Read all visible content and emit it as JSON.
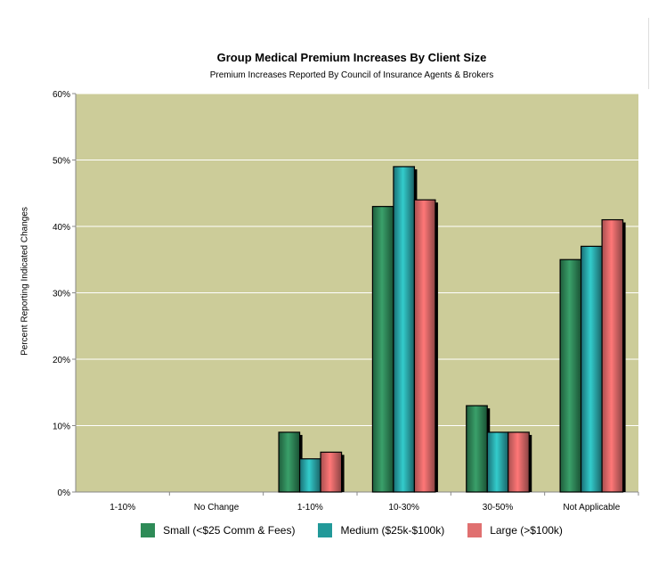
{
  "chart_data": {
    "type": "bar",
    "title": "Group Medical Premium Increases By Client Size",
    "subtitle": "Premium Increases Reported By Council of Insurance Agents & Brokers",
    "xlabel": "",
    "ylabel": "Percent Reporting Indicated Changes",
    "ylim": [
      0,
      60
    ],
    "yticks": [
      "0%",
      "10%",
      "20%",
      "30%",
      "40%",
      "50%",
      "60%"
    ],
    "ytick_values": [
      0,
      10,
      20,
      30,
      40,
      50,
      60
    ],
    "categories": [
      "1-10%",
      "No Change",
      "1-10%",
      "10-30%",
      "30-50%",
      "Not Applicable"
    ],
    "series": [
      {
        "name": "Small (<$25 Comm & Fees)",
        "color": "#2e8b57",
        "values": [
          0,
          0,
          9,
          43,
          13,
          35
        ]
      },
      {
        "name": "Medium ($25k-$100k)",
        "color": "#229999",
        "values": [
          0,
          0,
          5,
          49,
          9,
          37
        ]
      },
      {
        "name": "Large (>$100k)",
        "color": "#e07070",
        "values": [
          0,
          0,
          6,
          44,
          9,
          41
        ]
      }
    ],
    "grid": true,
    "legend_position": "bottom",
    "background": "#cccc99"
  }
}
